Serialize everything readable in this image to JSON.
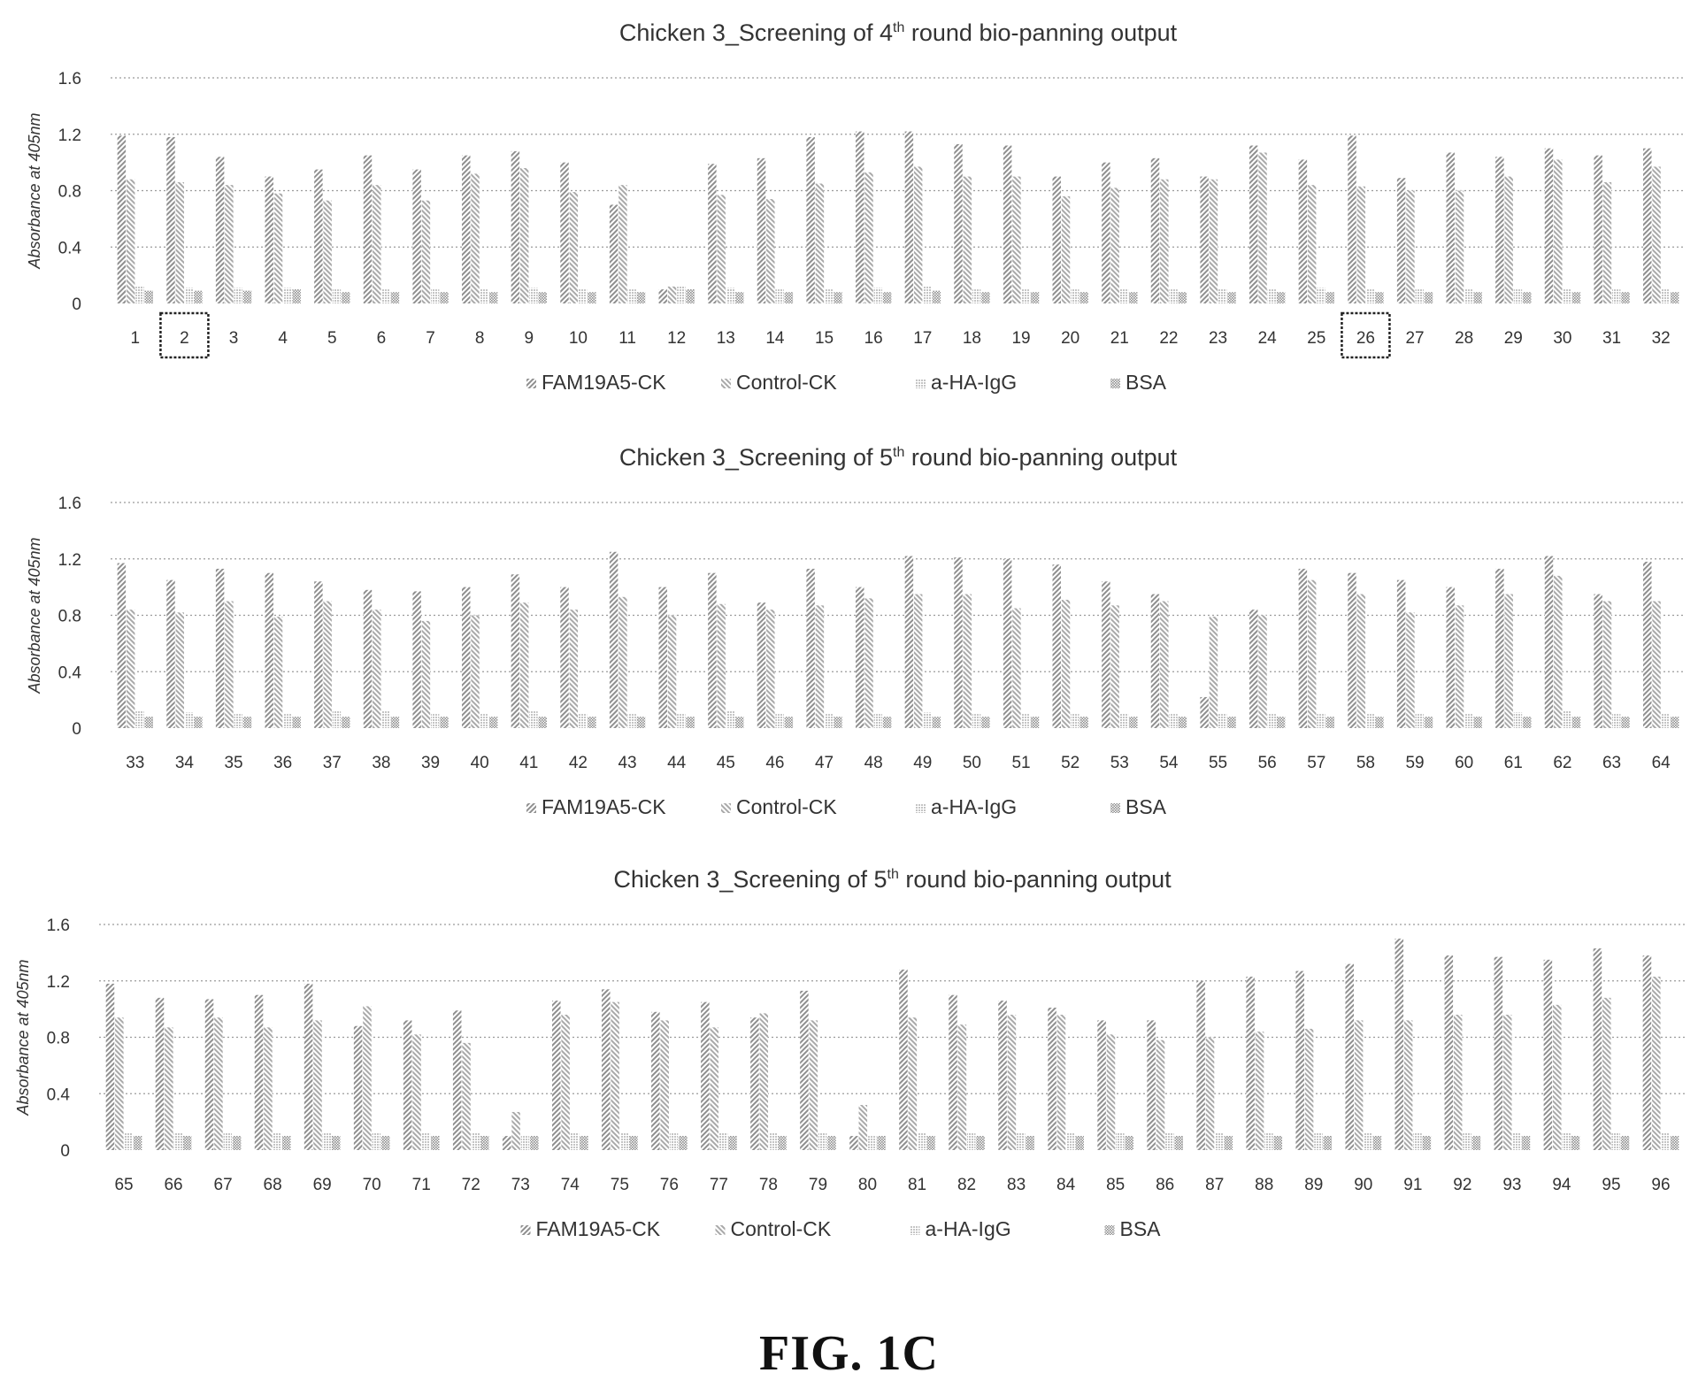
{
  "figure_caption": "FIG. 1C",
  "colors": {
    "fam": "#8f8f8f",
    "control": "#a9a9a9",
    "ha": "#cbcbcb",
    "bsa": "#9a9a9a",
    "grid": "#9b9b9b",
    "text": "#333333"
  },
  "chart_data": [
    {
      "type": "bar",
      "title_main": "Chicken 3_Screening of 4",
      "title_sup": "th",
      "title_rest": " round bio-panning output",
      "ylabel": "Absorbance at 405nm",
      "ylim": [
        0,
        1.6
      ],
      "yticks": [
        0,
        0.4,
        0.8,
        1.2,
        1.6
      ],
      "ytick_labels": [
        "0",
        "0.4",
        "0.8",
        "1.2",
        "1.6"
      ],
      "grid": true,
      "legend_position": "bottom",
      "categories": [
        "1",
        "2",
        "3",
        "4",
        "5",
        "6",
        "7",
        "8",
        "9",
        "10",
        "11",
        "12",
        "13",
        "14",
        "15",
        "16",
        "17",
        "18",
        "19",
        "20",
        "21",
        "22",
        "23",
        "24",
        "25",
        "26",
        "27",
        "28",
        "29",
        "30",
        "31",
        "32"
      ],
      "boxed_categories": [
        "2",
        "26"
      ],
      "series": [
        {
          "name": "FAM19A5-CK",
          "values": [
            1.19,
            1.18,
            1.04,
            0.9,
            0.95,
            1.05,
            0.95,
            1.05,
            1.08,
            1.0,
            0.7,
            0.1,
            0.99,
            1.03,
            1.18,
            1.22,
            1.22,
            1.13,
            1.12,
            0.9,
            1.0,
            1.03,
            0.9,
            1.12,
            1.02,
            1.19,
            0.89,
            1.07,
            1.04,
            1.1,
            1.05,
            1.1
          ]
        },
        {
          "name": "Control-CK",
          "values": [
            0.88,
            0.86,
            0.84,
            0.78,
            0.73,
            0.84,
            0.73,
            0.92,
            0.96,
            0.79,
            0.84,
            0.12,
            0.77,
            0.74,
            0.85,
            0.93,
            0.97,
            0.9,
            0.9,
            0.76,
            0.82,
            0.88,
            0.88,
            1.07,
            0.84,
            0.83,
            0.8,
            0.8,
            0.9,
            1.02,
            0.86,
            0.97
          ]
        },
        {
          "name": "a-HA-IgG",
          "values": [
            0.12,
            0.11,
            0.11,
            0.11,
            0.1,
            0.1,
            0.1,
            0.1,
            0.11,
            0.1,
            0.1,
            0.12,
            0.11,
            0.1,
            0.1,
            0.11,
            0.12,
            0.1,
            0.1,
            0.1,
            0.1,
            0.1,
            0.1,
            0.1,
            0.11,
            0.1,
            0.1,
            0.1,
            0.1,
            0.1,
            0.1,
            0.1
          ]
        },
        {
          "name": "BSA",
          "values": [
            0.09,
            0.09,
            0.09,
            0.1,
            0.08,
            0.08,
            0.08,
            0.08,
            0.08,
            0.08,
            0.08,
            0.1,
            0.08,
            0.08,
            0.08,
            0.08,
            0.09,
            0.08,
            0.08,
            0.08,
            0.08,
            0.08,
            0.08,
            0.08,
            0.08,
            0.08,
            0.08,
            0.08,
            0.08,
            0.08,
            0.08,
            0.08
          ]
        }
      ]
    },
    {
      "type": "bar",
      "title_main": "Chicken 3_Screening of 5",
      "title_sup": "th",
      "title_rest": " round bio-panning output",
      "ylabel": "Absorbance at 405nm",
      "ylim": [
        0,
        1.6
      ],
      "yticks": [
        0,
        0.4,
        0.8,
        1.2,
        1.6
      ],
      "ytick_labels": [
        "0",
        "0.4",
        "0.8",
        "1.2",
        "1.6"
      ],
      "grid": true,
      "legend_position": "bottom",
      "categories": [
        "33",
        "34",
        "35",
        "36",
        "37",
        "38",
        "39",
        "40",
        "41",
        "42",
        "43",
        "44",
        "45",
        "46",
        "47",
        "48",
        "49",
        "50",
        "51",
        "52",
        "53",
        "54",
        "55",
        "56",
        "57",
        "58",
        "59",
        "60",
        "61",
        "62",
        "63",
        "64"
      ],
      "boxed_categories": [],
      "series": [
        {
          "name": "FAM19A5-CK",
          "values": [
            1.17,
            1.05,
            1.13,
            1.1,
            1.04,
            0.98,
            0.97,
            1.0,
            1.09,
            1.0,
            1.25,
            1.0,
            1.1,
            0.89,
            1.13,
            1.0,
            1.22,
            1.21,
            1.2,
            1.16,
            1.04,
            0.95,
            0.22,
            0.84,
            1.13,
            1.1,
            1.05,
            1.0,
            1.13,
            1.22,
            0.95,
            1.18
          ]
        },
        {
          "name": "Control-CK",
          "values": [
            0.84,
            0.82,
            0.9,
            0.79,
            0.9,
            0.84,
            0.76,
            0.8,
            0.89,
            0.84,
            0.93,
            0.8,
            0.88,
            0.84,
            0.87,
            0.92,
            0.95,
            0.95,
            0.85,
            0.91,
            0.87,
            0.9,
            0.79,
            0.8,
            1.05,
            0.95,
            0.82,
            0.87,
            0.95,
            1.08,
            0.9,
            0.9
          ]
        },
        {
          "name": "a-HA-IgG",
          "values": [
            0.12,
            0.11,
            0.1,
            0.1,
            0.12,
            0.12,
            0.1,
            0.1,
            0.12,
            0.1,
            0.1,
            0.1,
            0.12,
            0.1,
            0.1,
            0.1,
            0.11,
            0.1,
            0.1,
            0.1,
            0.1,
            0.1,
            0.1,
            0.1,
            0.1,
            0.1,
            0.1,
            0.1,
            0.11,
            0.12,
            0.1,
            0.1
          ]
        },
        {
          "name": "BSA",
          "values": [
            0.08,
            0.08,
            0.08,
            0.08,
            0.08,
            0.08,
            0.08,
            0.08,
            0.08,
            0.08,
            0.08,
            0.08,
            0.08,
            0.08,
            0.08,
            0.08,
            0.08,
            0.08,
            0.08,
            0.08,
            0.08,
            0.08,
            0.08,
            0.08,
            0.08,
            0.08,
            0.08,
            0.08,
            0.08,
            0.08,
            0.08,
            0.08
          ]
        }
      ]
    },
    {
      "type": "bar",
      "title_main": "Chicken 3_Screening of 5",
      "title_sup": "th",
      "title_rest": " round bio-panning output",
      "ylabel": "Absorbance at 405nm",
      "ylim": [
        0,
        1.6
      ],
      "yticks": [
        0,
        0.4,
        0.8,
        1.2,
        1.6
      ],
      "ytick_labels": [
        "0",
        "0.4",
        "0.8",
        "1.2",
        "1.6"
      ],
      "grid": true,
      "legend_position": "bottom",
      "categories": [
        "65",
        "66",
        "67",
        "68",
        "69",
        "70",
        "71",
        "72",
        "73",
        "74",
        "75",
        "76",
        "77",
        "78",
        "79",
        "80",
        "81",
        "82",
        "83",
        "84",
        "85",
        "86",
        "87",
        "88",
        "89",
        "90",
        "91",
        "92",
        "93",
        "94",
        "95",
        "96"
      ],
      "boxed_categories": [],
      "series": [
        {
          "name": "FAM19A5-CK",
          "values": [
            1.18,
            1.08,
            1.07,
            1.1,
            1.18,
            0.88,
            0.92,
            0.99,
            0.1,
            1.06,
            1.14,
            0.98,
            1.05,
            0.94,
            1.13,
            0.1,
            1.28,
            1.1,
            1.06,
            1.01,
            0.92,
            0.92,
            1.2,
            1.23,
            1.27,
            1.32,
            1.5,
            1.38,
            1.37,
            1.35,
            1.43,
            1.38
          ]
        },
        {
          "name": "Control-CK",
          "values": [
            0.94,
            0.87,
            0.94,
            0.87,
            0.92,
            1.02,
            0.82,
            0.76,
            0.27,
            0.96,
            1.05,
            0.92,
            0.87,
            0.97,
            0.92,
            0.32,
            0.94,
            0.89,
            0.96,
            0.96,
            0.82,
            0.78,
            0.8,
            0.84,
            0.86,
            0.92,
            0.92,
            0.96,
            0.96,
            1.03,
            1.08,
            1.23
          ]
        },
        {
          "name": "a-HA-IgG",
          "values": [
            0.12,
            0.12,
            0.12,
            0.12,
            0.12,
            0.12,
            0.12,
            0.12,
            0.1,
            0.12,
            0.12,
            0.12,
            0.12,
            0.12,
            0.12,
            0.1,
            0.12,
            0.12,
            0.12,
            0.12,
            0.12,
            0.12,
            0.12,
            0.12,
            0.12,
            0.12,
            0.12,
            0.12,
            0.12,
            0.12,
            0.12,
            0.12
          ]
        },
        {
          "name": "BSA",
          "values": [
            0.1,
            0.1,
            0.1,
            0.1,
            0.1,
            0.1,
            0.1,
            0.1,
            0.1,
            0.1,
            0.1,
            0.1,
            0.1,
            0.1,
            0.1,
            0.1,
            0.1,
            0.1,
            0.1,
            0.1,
            0.1,
            0.1,
            0.1,
            0.1,
            0.1,
            0.1,
            0.1,
            0.1,
            0.1,
            0.1,
            0.1,
            0.1
          ]
        }
      ]
    }
  ]
}
